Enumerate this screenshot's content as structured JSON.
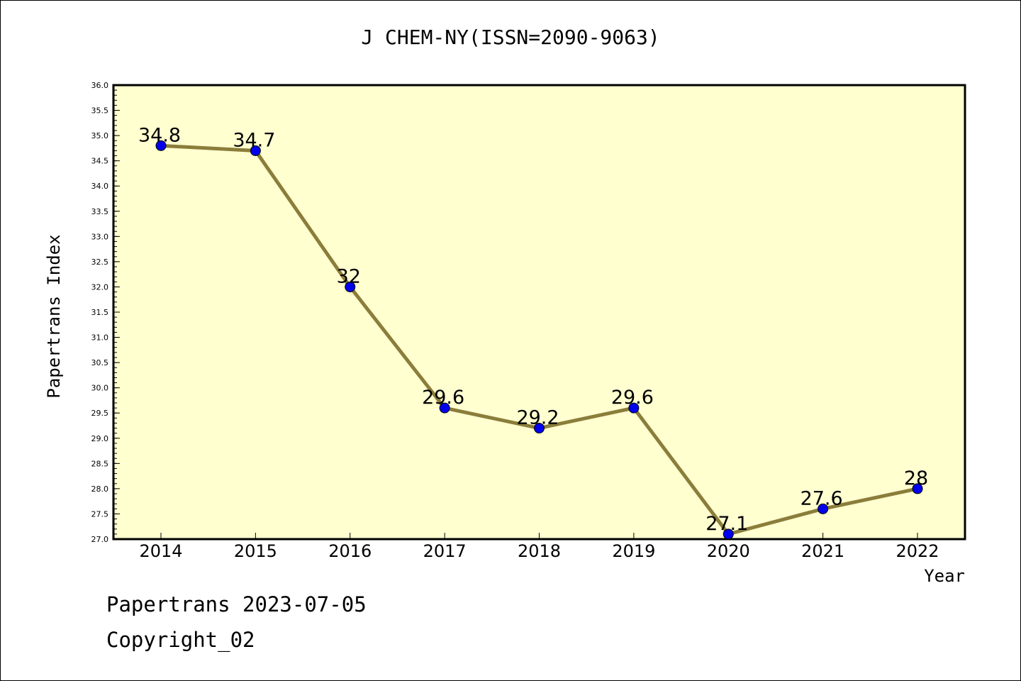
{
  "chart_data": {
    "type": "line",
    "title": "J CHEM-NY(ISSN=2090-9063)",
    "xlabel": "Year",
    "ylabel": "Papertrans Index",
    "categories": [
      "2014",
      "2015",
      "2016",
      "2017",
      "2018",
      "2019",
      "2020",
      "2021",
      "2022"
    ],
    "series": [
      {
        "values": [
          34.8,
          34.7,
          32,
          29.6,
          29.2,
          29.6,
          27.1,
          27.6,
          28
        ]
      }
    ],
    "data_labels": [
      "34.8",
      "34.7",
      "32",
      "29.6",
      "29.2",
      "29.6",
      "27.1",
      "27.6",
      "28"
    ],
    "ylim": [
      27.0,
      36.0
    ],
    "yticks": [
      "27.0",
      "27.5",
      "28.0",
      "28.5",
      "29.0",
      "29.5",
      "30.0",
      "30.5",
      "31.0",
      "31.5",
      "32.0",
      "32.5",
      "33.0",
      "33.5",
      "34.0",
      "34.5",
      "35.0",
      "35.5",
      "36.0"
    ],
    "grid": false,
    "colors": {
      "plot_background": "#ffffd0",
      "line": "#8b7d3a",
      "marker": "#0000ee"
    }
  },
  "footer": {
    "line1": "Papertrans 2023-07-05",
    "line2": "Copyright_02"
  }
}
